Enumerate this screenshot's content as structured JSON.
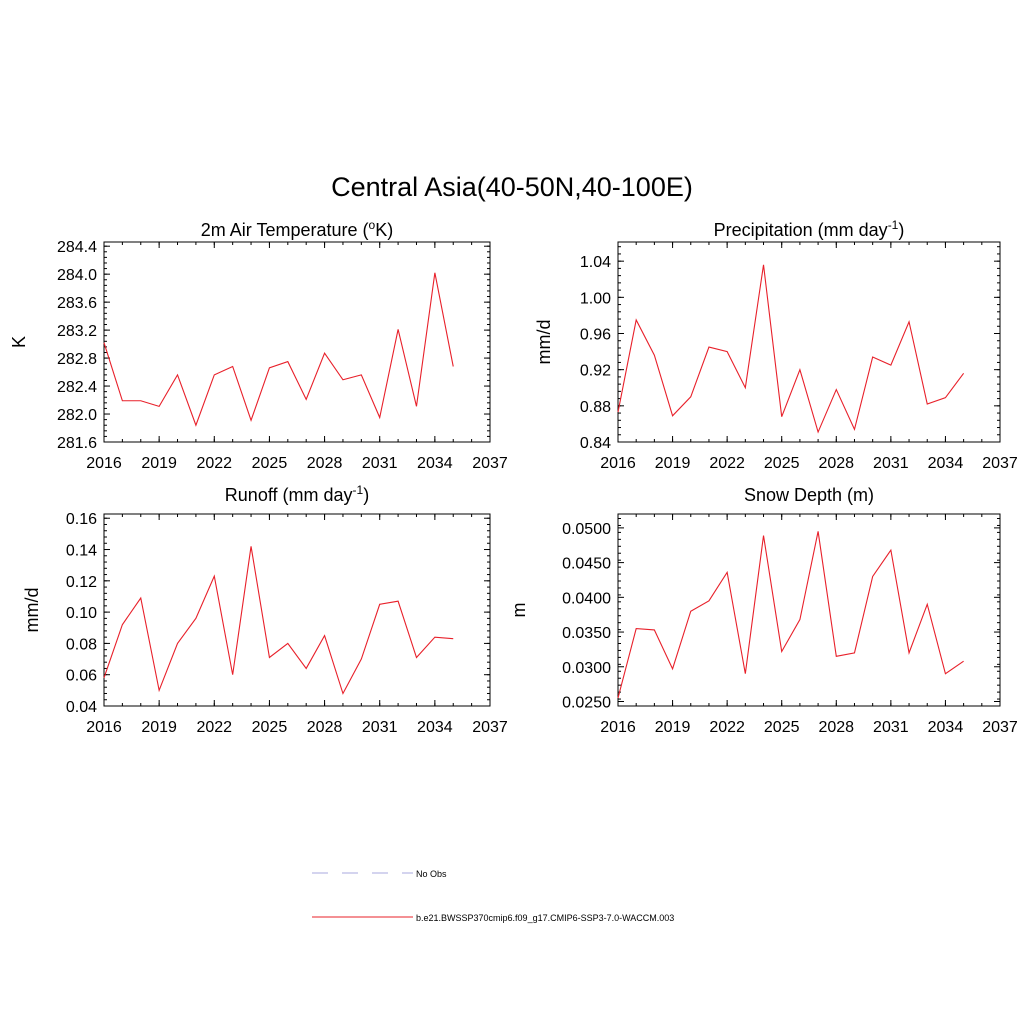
{
  "figure": {
    "title": "Central Asia(40-50N,40-100E)"
  },
  "chart_data": [
    {
      "id": "temp",
      "type": "line",
      "title": "2m Air Temperature (",
      "title_sup": "o",
      "title_after": "K)",
      "title_tail": "",
      "ylabel": "K",
      "xlabel": "",
      "xlim": [
        2016,
        2037
      ],
      "ylim": [
        281.6,
        284.46
      ],
      "xticks": [
        2016,
        2019,
        2022,
        2025,
        2028,
        2031,
        2034,
        2037
      ],
      "xtick_labels": [
        "2016",
        "2019",
        "2022",
        "2025",
        "2028",
        "2031",
        "2034",
        "2037"
      ],
      "yticks": [
        281.6,
        282.0,
        282.4,
        282.8,
        283.2,
        283.6,
        284.0,
        284.4
      ],
      "ytick_labels": [
        "281.6",
        "282.0",
        "282.4",
        "282.8",
        "283.2",
        "283.6",
        "284.0",
        "284.4"
      ],
      "yminor_step": 0.08,
      "grid": false,
      "series": [
        {
          "name": "b.e21.BWSSP370cmip6.f09_g17.CMIP6-SSP3-7.0-WACCM.003",
          "color": "#e8202a",
          "x": [
            2016,
            2017,
            2018,
            2019,
            2020,
            2021,
            2022,
            2023,
            2024,
            2025,
            2026,
            2027,
            2028,
            2029,
            2030,
            2031,
            2032,
            2033,
            2034,
            2035
          ],
          "values": [
            283.02,
            282.19,
            282.19,
            282.11,
            282.56,
            281.84,
            282.56,
            282.68,
            281.91,
            282.66,
            282.75,
            282.21,
            282.87,
            282.49,
            282.56,
            281.95,
            283.21,
            282.11,
            284.02,
            282.68
          ]
        }
      ]
    },
    {
      "id": "precip",
      "type": "line",
      "title": "Precipitation (mm day",
      "title_sup": "-1",
      "title_after": ")",
      "title_tail": "",
      "ylabel": "mm/d",
      "xlabel": "",
      "xlim": [
        2016,
        2037
      ],
      "ylim": [
        0.84,
        1.0612
      ],
      "xticks": [
        2016,
        2019,
        2022,
        2025,
        2028,
        2031,
        2034,
        2037
      ],
      "xtick_labels": [
        "2016",
        "2019",
        "2022",
        "2025",
        "2028",
        "2031",
        "2034",
        "2037"
      ],
      "yticks": [
        0.84,
        0.88,
        0.92,
        0.96,
        1.0,
        1.04
      ],
      "ytick_labels": [
        "0.84",
        "0.88",
        "0.92",
        "0.96",
        "1.00",
        "1.04"
      ],
      "yminor_step": 0.008,
      "grid": false,
      "series": [
        {
          "name": "b.e21.BWSSP370cmip6.f09_g17.CMIP6-SSP3-7.0-WACCM.003",
          "color": "#e8202a",
          "x": [
            2016,
            2017,
            2018,
            2019,
            2020,
            2021,
            2022,
            2023,
            2024,
            2025,
            2026,
            2027,
            2028,
            2029,
            2030,
            2031,
            2032,
            2033,
            2034,
            2035
          ],
          "values": [
            0.873,
            0.975,
            0.936,
            0.869,
            0.89,
            0.945,
            0.94,
            0.9,
            1.036,
            0.868,
            0.92,
            0.851,
            0.898,
            0.854,
            0.934,
            0.925,
            0.973,
            0.882,
            0.889,
            0.916
          ]
        }
      ]
    },
    {
      "id": "runoff",
      "type": "line",
      "title": "Runoff (mm day",
      "title_sup": "-1",
      "title_after": ")",
      "title_tail": "",
      "ylabel": "mm/d",
      "xlabel": "",
      "xlim": [
        2016,
        2037
      ],
      "ylim": [
        0.04,
        0.1627
      ],
      "xticks": [
        2016,
        2019,
        2022,
        2025,
        2028,
        2031,
        2034,
        2037
      ],
      "xtick_labels": [
        "2016",
        "2019",
        "2022",
        "2025",
        "2028",
        "2031",
        "2034",
        "2037"
      ],
      "yticks": [
        0.04,
        0.06,
        0.08,
        0.1,
        0.12,
        0.14,
        0.16
      ],
      "ytick_labels": [
        "0.04",
        "0.06",
        "0.08",
        "0.10",
        "0.12",
        "0.14",
        "0.16"
      ],
      "yminor_step": 0.004,
      "grid": false,
      "series": [
        {
          "name": "b.e21.BWSSP370cmip6.f09_g17.CMIP6-SSP3-7.0-WACCM.003",
          "color": "#e8202a",
          "x": [
            2016,
            2017,
            2018,
            2019,
            2020,
            2021,
            2022,
            2023,
            2024,
            2025,
            2026,
            2027,
            2028,
            2029,
            2030,
            2031,
            2032,
            2033,
            2034,
            2035
          ],
          "values": [
            0.058,
            0.092,
            0.109,
            0.05,
            0.08,
            0.096,
            0.123,
            0.06,
            0.142,
            0.071,
            0.08,
            0.064,
            0.085,
            0.048,
            0.07,
            0.105,
            0.107,
            0.071,
            0.084,
            0.083
          ]
        }
      ]
    },
    {
      "id": "snow",
      "type": "line",
      "title": "Snow Depth (m)",
      "title_sup": "",
      "title_after": "",
      "title_tail": "",
      "ylabel": "m",
      "xlabel": "",
      "xlim": [
        2016,
        2037
      ],
      "ylim": [
        0.02435,
        0.052
      ],
      "xticks": [
        2016,
        2019,
        2022,
        2025,
        2028,
        2031,
        2034,
        2037
      ],
      "xtick_labels": [
        "2016",
        "2019",
        "2022",
        "2025",
        "2028",
        "2031",
        "2034",
        "2037"
      ],
      "yticks": [
        0.025,
        0.03,
        0.035,
        0.04,
        0.045,
        0.05
      ],
      "ytick_labels": [
        "0.0250",
        "0.0300",
        "0.0350",
        "0.0400",
        "0.0450",
        "0.0500"
      ],
      "yminor_step": 0.001,
      "grid": false,
      "series": [
        {
          "name": "b.e21.BWSSP370cmip6.f09_g17.CMIP6-SSP3-7.0-WACCM.003",
          "color": "#e8202a",
          "x": [
            2016,
            2017,
            2018,
            2019,
            2020,
            2021,
            2022,
            2023,
            2024,
            2025,
            2026,
            2027,
            2028,
            2029,
            2030,
            2031,
            2032,
            2033,
            2034,
            2035
          ],
          "values": [
            0.0255,
            0.0355,
            0.0353,
            0.0297,
            0.038,
            0.0395,
            0.0436,
            0.029,
            0.0489,
            0.0322,
            0.0368,
            0.0495,
            0.0315,
            0.032,
            0.043,
            0.0468,
            0.032,
            0.039,
            0.029,
            0.0308
          ]
        }
      ]
    }
  ],
  "legend": {
    "items": [
      {
        "label": "No Obs",
        "color": "#a9a9df",
        "dash": true
      },
      {
        "label": "b.e21.BWSSP370cmip6.f09_g17.CMIP6-SSP3-7.0-WACCM.003",
        "color": "#e8202a",
        "dash": false
      }
    ]
  }
}
